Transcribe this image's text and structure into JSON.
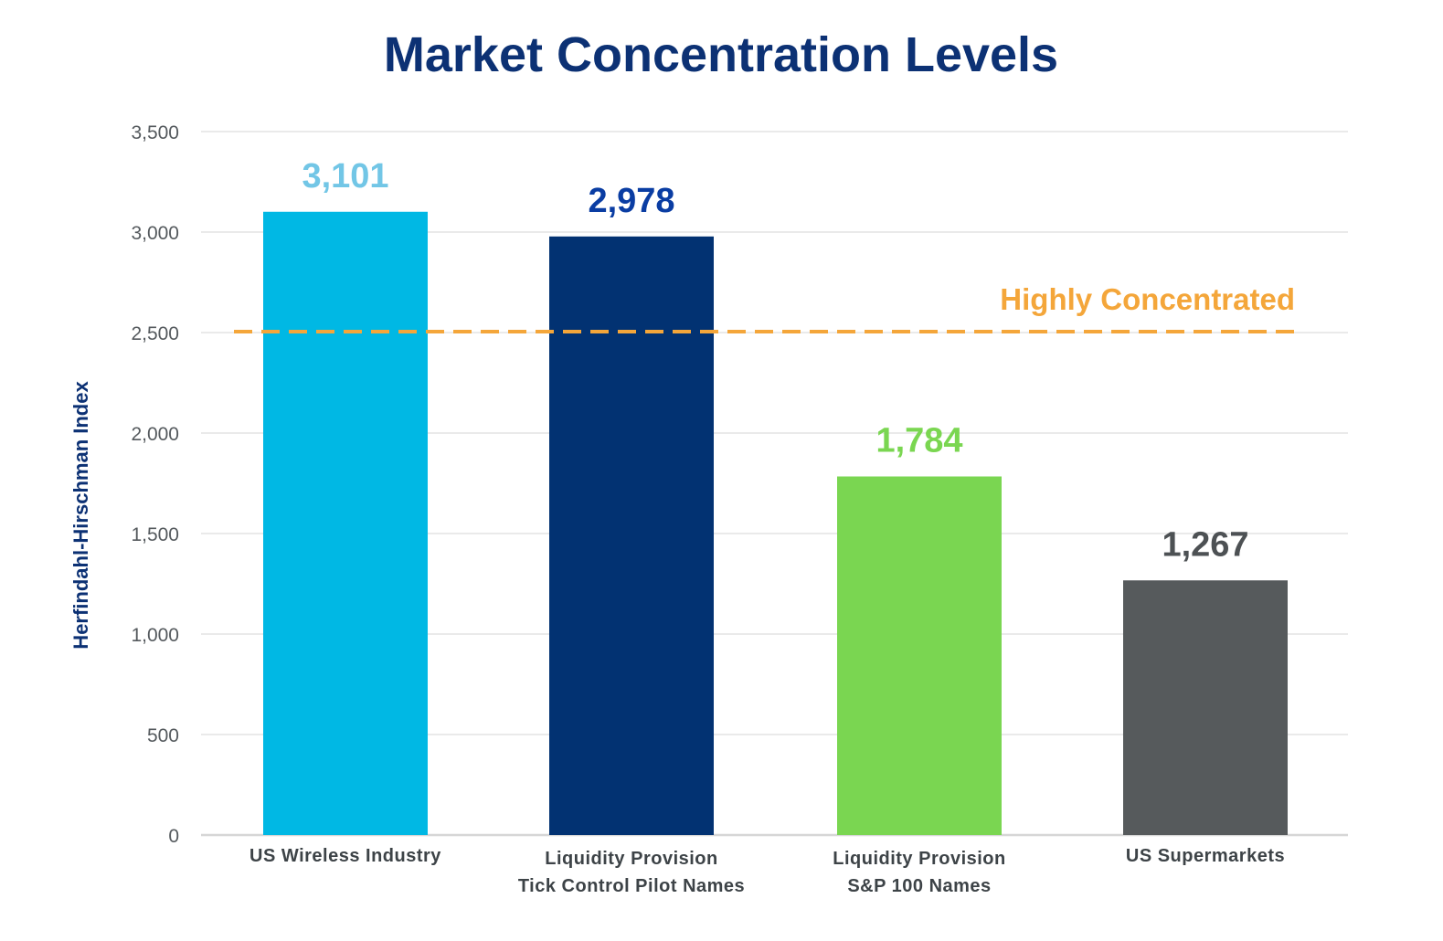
{
  "chart_data": {
    "type": "bar",
    "title": "Market Concentration Levels",
    "ylabel": "Herfindahl-Hirschman Index",
    "ylim": [
      0,
      3500
    ],
    "yticks": [
      0,
      500,
      1000,
      1500,
      2000,
      2500,
      3000,
      3500
    ],
    "ytick_labels": [
      "0",
      "500",
      "1,000",
      "1,500",
      "2,000",
      "2,500",
      "3,000",
      "3,500"
    ],
    "grid": true,
    "categories": [
      [
        "US Wireless Industry"
      ],
      [
        "Liquidity Provision",
        "Tick Control Pilot Names"
      ],
      [
        "Liquidity Provision",
        "S&P 100 Names"
      ],
      [
        "US Supermarkets"
      ]
    ],
    "values": [
      3101,
      2978,
      1784,
      1267
    ],
    "data_labels": [
      "3,101",
      "2,978",
      "1,784",
      "1,267"
    ],
    "bar_colors": [
      "#00b8e4",
      "#023272",
      "#7ad651",
      "#565a5c"
    ],
    "label_colors": [
      "#72c6e6",
      "#0a3da3",
      "#7ad651",
      "#4d5154"
    ],
    "reference_line": {
      "value": 2500,
      "label": "Highly Concentrated",
      "color": "#f4a63a",
      "style": "dashed"
    },
    "colors": {
      "title": "#0c3174",
      "ylabel": "#0c3174",
      "grid": "#e3e3e3",
      "axis": "#d6d6d6"
    }
  }
}
